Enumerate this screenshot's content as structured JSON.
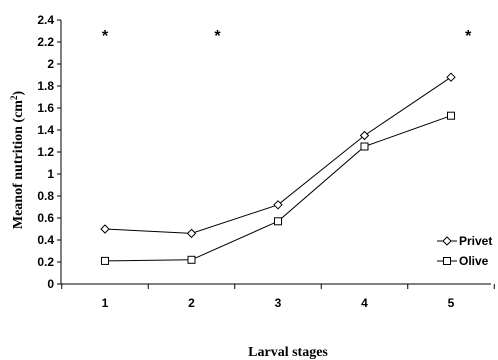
{
  "chart_data": {
    "type": "line",
    "x": [
      1,
      2,
      3,
      4,
      5
    ],
    "xlabel": "Larval stages",
    "ylabel": "Meanof nutrition (cm",
    "ylabel_sup": "2",
    "ylabel_tail": ")",
    "ylim": [
      0,
      2.4
    ],
    "yticks": [
      "0",
      "0.2",
      "0.4",
      "0.6",
      "0.8",
      "1",
      "1.2",
      "1.4",
      "1.6",
      "1.8",
      "2",
      "2.2",
      "2.4"
    ],
    "xticks": [
      "1",
      "2",
      "3",
      "4",
      "5"
    ],
    "series": [
      {
        "name": "Privet",
        "marker": "diamond",
        "values": [
          0.5,
          0.46,
          0.72,
          1.35,
          1.88
        ]
      },
      {
        "name": "Olive",
        "marker": "square",
        "values": [
          0.21,
          0.22,
          0.57,
          1.25,
          1.53
        ]
      }
    ],
    "annotations": [
      {
        "text": "*",
        "x": 1,
        "y": 2.28
      },
      {
        "text": "*",
        "x": 2.3,
        "y": 2.28
      },
      {
        "text": "*",
        "x": 5.2,
        "y": 2.28
      }
    ],
    "legend_position": "right",
    "grid": false
  }
}
